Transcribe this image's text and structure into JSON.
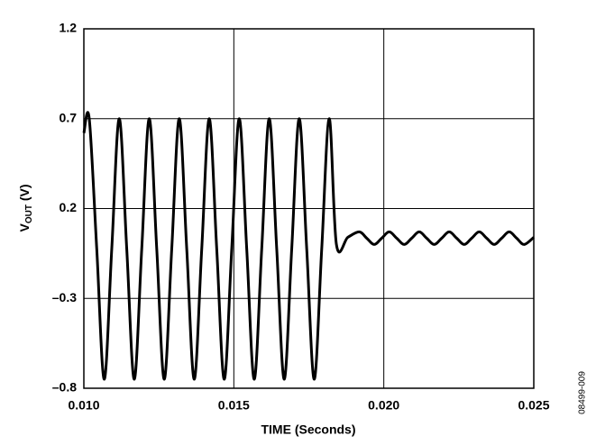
{
  "chart_data": {
    "type": "line",
    "x_label": "TIME (Seconds)",
    "y_label": {
      "main": "V",
      "sub": "OUT",
      "unit": " (V)"
    },
    "side_label": "08499-009",
    "color": "#000000",
    "grid": true,
    "xlim": [
      0.01,
      0.025
    ],
    "ylim": [
      -0.8,
      1.2
    ],
    "xticks": [
      {
        "value": 0.01,
        "label": "0.010"
      },
      {
        "value": 0.015,
        "label": "0.015"
      },
      {
        "value": 0.02,
        "label": "0.020"
      },
      {
        "value": 0.025,
        "label": "0.025"
      }
    ],
    "yticks": [
      {
        "value": -0.8,
        "label": "–0.8"
      },
      {
        "value": -0.3,
        "label": "–0.3"
      },
      0.2,
      0.7,
      1.2
    ],
    "x": [
      0.01,
      0.01018,
      0.01043,
      0.01068,
      0.01093,
      0.01118,
      0.01143,
      0.01168,
      0.01193,
      0.01218,
      0.01243,
      0.01268,
      0.01293,
      0.01318,
      0.01343,
      0.01368,
      0.01393,
      0.01418,
      0.01443,
      0.01468,
      0.01493,
      0.01518,
      0.01543,
      0.01568,
      0.01593,
      0.01618,
      0.01643,
      0.01668,
      0.01693,
      0.01718,
      0.01743,
      0.01768,
      0.01793,
      0.01818,
      0.01842,
      0.0188,
      0.01918,
      0.01943,
      0.01968,
      0.01993,
      0.02018,
      0.02043,
      0.02068,
      0.02093,
      0.02118,
      0.02143,
      0.02168,
      0.02193,
      0.02218,
      0.02243,
      0.02268,
      0.02293,
      0.02318,
      0.02343,
      0.02368,
      0.02393,
      0.02418,
      0.02443,
      0.02468,
      0.025
    ],
    "values": [
      0.62,
      0.7,
      -0.025,
      -0.75,
      -0.025,
      0.7,
      -0.025,
      -0.75,
      -0.025,
      0.7,
      -0.025,
      -0.75,
      -0.025,
      0.7,
      -0.025,
      -0.75,
      -0.025,
      0.7,
      -0.025,
      -0.75,
      -0.025,
      0.7,
      -0.025,
      -0.75,
      -0.025,
      0.7,
      -0.025,
      -0.75,
      -0.025,
      0.7,
      -0.025,
      -0.75,
      -0.025,
      0.7,
      0.0,
      0.04,
      0.07,
      0.035,
      0.0,
      0.035,
      0.07,
      0.035,
      0.0,
      0.035,
      0.07,
      0.035,
      0.0,
      0.035,
      0.07,
      0.035,
      0.0,
      0.035,
      0.07,
      0.035,
      0.0,
      0.035,
      0.07,
      0.035,
      0.0,
      0.04
    ]
  }
}
